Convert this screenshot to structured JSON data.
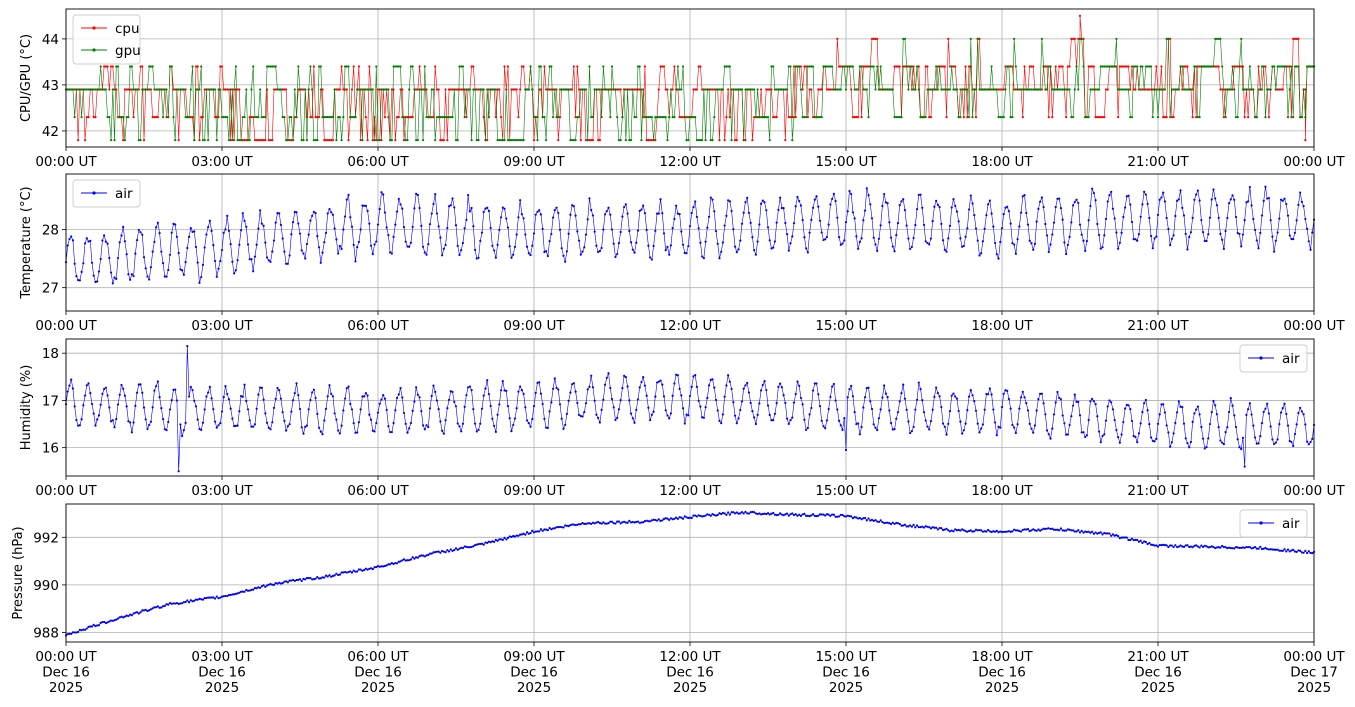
{
  "chart_data": [
    {
      "type": "line",
      "ylabel": "CPU/GPU (°C)",
      "xlim": [
        "00:00",
        "24:00"
      ],
      "ylim": [
        41.65,
        44.65
      ],
      "yticks": [
        42,
        43,
        44
      ],
      "x_tick_labels": [
        "00:00 UT",
        "03:00 UT",
        "06:00 UT",
        "09:00 UT",
        "12:00 UT",
        "15:00 UT",
        "18:00 UT",
        "21:00 UT",
        "00:00 UT"
      ],
      "grid": true,
      "legend": "top-left",
      "sampling_interval_minutes": 2,
      "series": [
        {
          "name": "cpu",
          "color": "#ff0000",
          "levels": [
            41.8,
            42.3,
            42.9,
            43.4,
            44.0
          ],
          "baseline": 42.9,
          "extremes": [
            {
              "time": "19:30",
              "value": 44.5
            },
            {
              "time": "23:50",
              "value": 41.8
            }
          ]
        },
        {
          "name": "gpu",
          "color": "#008000",
          "levels": [
            41.8,
            42.3,
            42.9,
            43.4,
            44.0
          ],
          "baseline": 42.9
        }
      ]
    },
    {
      "type": "line",
      "ylabel": "Temperature (°C)",
      "xlim": [
        "00:00",
        "24:00"
      ],
      "ylim": [
        26.6,
        28.95
      ],
      "yticks": [
        27,
        28
      ],
      "x_tick_labels": [
        "00:00 UT",
        "03:00 UT",
        "06:00 UT",
        "09:00 UT",
        "12:00 UT",
        "15:00 UT",
        "18:00 UT",
        "21:00 UT",
        "00:00 UT"
      ],
      "grid": true,
      "legend": "top-left",
      "series": [
        {
          "name": "air",
          "color": "#0000ff",
          "mean_by_hour": [
            {
              "time": "00:00",
              "value": 27.45
            },
            {
              "time": "01:30",
              "value": 27.55
            },
            {
              "time": "03:00",
              "value": 27.7
            },
            {
              "time": "06:00",
              "value": 28.1
            },
            {
              "time": "09:00",
              "value": 27.95
            },
            {
              "time": "12:00",
              "value": 28.0
            },
            {
              "time": "15:00",
              "value": 28.15
            },
            {
              "time": "18:00",
              "value": 28.05
            },
            {
              "time": "21:00",
              "value": 28.2
            },
            {
              "time": "24:00",
              "value": 28.2
            }
          ],
          "amplitude": 0.45,
          "oscillation_period_minutes": 20,
          "min": 26.7,
          "max": 28.85
        }
      ]
    },
    {
      "type": "line",
      "ylabel": "Humidity (%)",
      "xlim": [
        "00:00",
        "24:00"
      ],
      "ylim": [
        15.4,
        18.3
      ],
      "yticks": [
        16,
        17,
        18
      ],
      "x_tick_labels": [
        "00:00 UT",
        "03:00 UT",
        "06:00 UT",
        "09:00 UT",
        "12:00 UT",
        "15:00 UT",
        "18:00 UT",
        "21:00 UT",
        "00:00 UT"
      ],
      "grid": true,
      "legend": "top-right",
      "series": [
        {
          "name": "air",
          "color": "#0000ff",
          "mean_by_hour": [
            {
              "time": "00:00",
              "value": 16.9
            },
            {
              "time": "03:00",
              "value": 16.8
            },
            {
              "time": "06:00",
              "value": 16.75
            },
            {
              "time": "09:00",
              "value": 16.9
            },
            {
              "time": "11:00",
              "value": 17.05
            },
            {
              "time": "12:30",
              "value": 17.05
            },
            {
              "time": "15:00",
              "value": 16.8
            },
            {
              "time": "18:00",
              "value": 16.8
            },
            {
              "time": "21:00",
              "value": 16.5
            },
            {
              "time": "24:00",
              "value": 16.45
            }
          ],
          "amplitude": 0.45,
          "oscillation_period_minutes": 20,
          "spikes": [
            {
              "time": "02:20",
              "value": 18.15
            },
            {
              "time": "02:10",
              "value": 15.5
            },
            {
              "time": "22:40",
              "value": 15.6
            },
            {
              "time": "15:00",
              "value": 15.95
            }
          ],
          "min": 15.5,
          "max": 18.15
        }
      ]
    },
    {
      "type": "line",
      "ylabel": "Pressure (hPa)",
      "xlim": [
        "2025-12-16 00:00",
        "2025-12-17 00:00"
      ],
      "ylim": [
        987.6,
        993.4
      ],
      "yticks": [
        988,
        990,
        992
      ],
      "x_tick_labels": [
        [
          "00:00 UT",
          "Dec 16",
          "2025"
        ],
        [
          "03:00 UT",
          "Dec 16",
          "2025"
        ],
        [
          "06:00 UT",
          "Dec 16",
          "2025"
        ],
        [
          "09:00 UT",
          "Dec 16",
          "2025"
        ],
        [
          "12:00 UT",
          "Dec 16",
          "2025"
        ],
        [
          "15:00 UT",
          "Dec 16",
          "2025"
        ],
        [
          "18:00 UT",
          "Dec 16",
          "2025"
        ],
        [
          "21:00 UT",
          "Dec 16",
          "2025"
        ],
        [
          "00:00 UT",
          "Dec 17",
          "2025"
        ]
      ],
      "grid": true,
      "legend": "top-right",
      "series": [
        {
          "name": "air",
          "color": "#0000ff",
          "points": [
            {
              "time": "00:00",
              "value": 987.9
            },
            {
              "time": "01:00",
              "value": 988.6
            },
            {
              "time": "02:00",
              "value": 989.2
            },
            {
              "time": "03:00",
              "value": 989.5
            },
            {
              "time": "04:00",
              "value": 990.05
            },
            {
              "time": "05:00",
              "value": 990.35
            },
            {
              "time": "06:00",
              "value": 990.75
            },
            {
              "time": "07:00",
              "value": 991.3
            },
            {
              "time": "08:00",
              "value": 991.7
            },
            {
              "time": "09:00",
              "value": 992.25
            },
            {
              "time": "10:00",
              "value": 992.6
            },
            {
              "time": "11:00",
              "value": 992.65
            },
            {
              "time": "12:00",
              "value": 992.85
            },
            {
              "time": "13:00",
              "value": 993.05
            },
            {
              "time": "14:00",
              "value": 992.95
            },
            {
              "time": "15:00",
              "value": 992.9
            },
            {
              "time": "16:00",
              "value": 992.55
            },
            {
              "time": "17:00",
              "value": 992.3
            },
            {
              "time": "18:00",
              "value": 992.25
            },
            {
              "time": "19:00",
              "value": 992.35
            },
            {
              "time": "20:00",
              "value": 992.15
            },
            {
              "time": "21:00",
              "value": 991.65
            },
            {
              "time": "22:00",
              "value": 991.6
            },
            {
              "time": "23:00",
              "value": 991.55
            },
            {
              "time": "24:00",
              "value": 991.35
            }
          ],
          "noise": 0.05
        }
      ]
    }
  ]
}
